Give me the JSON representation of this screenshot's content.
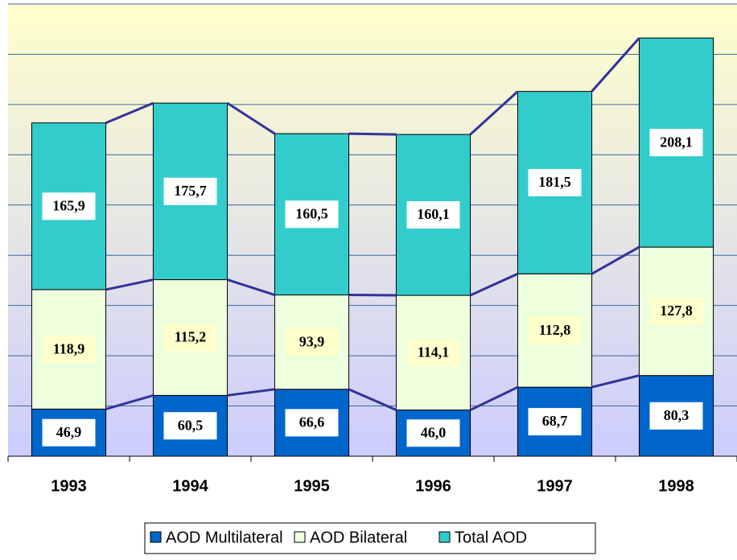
{
  "chart_data": {
    "type": "stacked_bar",
    "categories": [
      "1993",
      "1994",
      "1995",
      "1996",
      "1997",
      "1998"
    ],
    "series": [
      {
        "name": "AOD Multilateral",
        "color": "#0066cc",
        "values": [
          46.9,
          60.5,
          66.6,
          46.0,
          68.7,
          80.3
        ],
        "value_labels": [
          "46,9",
          "60,5",
          "66,6",
          "46,0",
          "68,7",
          "80,3"
        ]
      },
      {
        "name": "AOD Bilateral",
        "color": "#eeffdd",
        "values": [
          118.9,
          115.2,
          93.9,
          114.1,
          112.8,
          127.8
        ],
        "value_labels": [
          "118,9",
          "115,2",
          "93,9",
          "114,1",
          "112,8",
          "127,8"
        ]
      },
      {
        "name": "Total AOD",
        "color": "#33cccc",
        "values": [
          165.9,
          175.7,
          160.5,
          160.1,
          181.5,
          208.1
        ],
        "value_labels": [
          "165,9",
          "175,7",
          "160,5",
          "160,1",
          "181,5",
          "208,1"
        ]
      }
    ],
    "ylim": [
      0,
      450
    ],
    "yticks": [
      0,
      50,
      100,
      150,
      200,
      250,
      300,
      350,
      400,
      450
    ],
    "grid": true,
    "legend": "bottom"
  }
}
